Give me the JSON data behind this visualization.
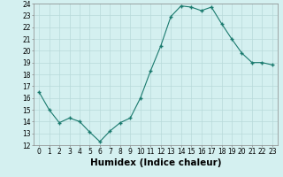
{
  "x": [
    0,
    1,
    2,
    3,
    4,
    5,
    6,
    7,
    8,
    9,
    10,
    11,
    12,
    13,
    14,
    15,
    16,
    17,
    18,
    19,
    20,
    21,
    22,
    23
  ],
  "y": [
    16.5,
    15.0,
    13.9,
    14.3,
    14.0,
    13.1,
    12.3,
    13.2,
    13.9,
    14.3,
    16.0,
    18.3,
    20.4,
    22.9,
    23.8,
    23.7,
    23.4,
    23.7,
    22.3,
    21.0,
    19.8,
    19.0,
    19.0,
    18.8
  ],
  "xlabel": "Humidex (Indice chaleur)",
  "ylim": [
    12,
    24
  ],
  "xlim_min": -0.5,
  "xlim_max": 23.5,
  "yticks": [
    12,
    13,
    14,
    15,
    16,
    17,
    18,
    19,
    20,
    21,
    22,
    23,
    24
  ],
  "xticks": [
    0,
    1,
    2,
    3,
    4,
    5,
    6,
    7,
    8,
    9,
    10,
    11,
    12,
    13,
    14,
    15,
    16,
    17,
    18,
    19,
    20,
    21,
    22,
    23
  ],
  "line_color": "#1a7a6e",
  "marker_color": "#1a7a6e",
  "bg_color": "#d4f0f0",
  "grid_color": "#b8dada",
  "tick_label_fontsize": 5.5,
  "xlabel_fontsize": 7.5
}
